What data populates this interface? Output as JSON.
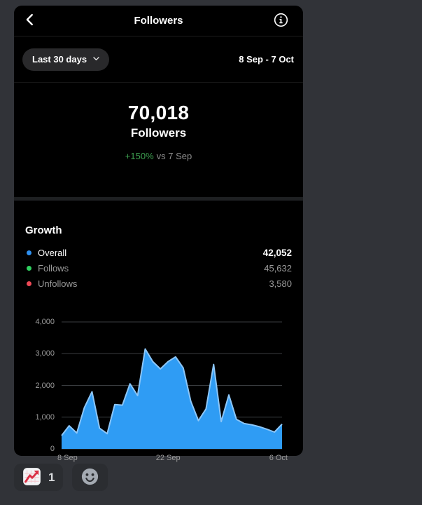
{
  "colors": {
    "page_bg": "#313338",
    "card_bg": "#000000",
    "pill_bg": "#29292b",
    "reaction_pill_bg": "#2b2d31",
    "positive_green": "#3d9f50",
    "muted_text": "#8e8e8e",
    "legend_blue": "#2e90f0",
    "legend_green": "#2fd05f",
    "legend_red": "#ed4956",
    "chart_fill": "#2f9cf4",
    "chart_line": "#8cc6f8"
  },
  "header": {
    "title": "Followers"
  },
  "filter": {
    "period": "Last 30 days",
    "date_range": "8 Sep - 7 Oct"
  },
  "summary": {
    "value": "70,018",
    "label": "Followers",
    "delta": "+150%",
    "delta_context": "vs 7 Sep"
  },
  "growth": {
    "title": "Growth",
    "legend": [
      {
        "label": "Overall",
        "value": "42,052",
        "color": "#2e90f0",
        "dot_style": "background:#2e90f0"
      },
      {
        "label": "Follows",
        "value": "45,632",
        "color": "#2fd05f",
        "dot_style": "background:#2fd05f"
      },
      {
        "label": "Unfollows",
        "value": "3,580",
        "color": "#ed4956",
        "dot_style": "background:#ed4956"
      }
    ]
  },
  "chart_data": {
    "type": "area",
    "title": "Growth",
    "series_name": "Overall followers per day",
    "x_range": [
      "8 Sep",
      "7 Oct"
    ],
    "values": [
      420,
      730,
      500,
      1300,
      1800,
      650,
      480,
      1400,
      1380,
      2050,
      1680,
      3150,
      2750,
      2520,
      2750,
      2900,
      2550,
      1500,
      890,
      1260,
      2660,
      860,
      1700,
      930,
      800,
      760,
      700,
      620,
      530,
      780
    ],
    "ylim": [
      0,
      4000
    ],
    "y_ticks": [
      0,
      1000,
      2000,
      3000,
      4000
    ],
    "y_tick_labels": [
      "0",
      "1,000",
      "2,000",
      "3,000",
      "4,000"
    ],
    "x_ticks": [
      {
        "label": "8 Sep",
        "pos": 0,
        "align": "left"
      },
      {
        "label": "22 Sep",
        "pos": 0.483,
        "align": "center"
      },
      {
        "label": "6 Oct",
        "pos": 1,
        "align": "right"
      }
    ],
    "grid": true,
    "grid_color": "#3a3d40",
    "fill_color": "#2f9cf4",
    "line_color": "#8cc6f8"
  },
  "reactions": {
    "chart_reaction_count": "1"
  }
}
